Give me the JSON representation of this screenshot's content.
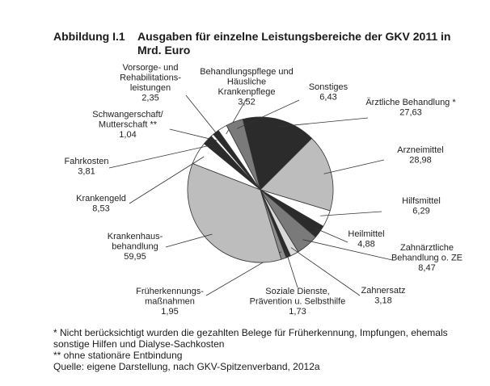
{
  "figure": {
    "label": "Abbildung I.1",
    "title": "Ausgaben für einzelne Leistungsbereiche der GKV 2011 in Mrd. Euro"
  },
  "chart_data": {
    "type": "pie",
    "title": "Ausgaben für einzelne Leistungsbereiche der GKV 2011 in Mrd. Euro",
    "slices": [
      {
        "label": "Ärztliche Behandlung *",
        "value": 27.63,
        "value_label": "27,63",
        "color": "#2b2b2b"
      },
      {
        "label": "Arzneimittel",
        "value": 28.98,
        "value_label": "28,98",
        "color": "#bdbdbd"
      },
      {
        "label": "Hilfsmittel",
        "value": 6.29,
        "value_label": "6,29",
        "color": "#ffffff"
      },
      {
        "label": "Heilmittel",
        "value": 4.88,
        "value_label": "4,88",
        "color": "#2b2b2b"
      },
      {
        "label": "Zahnärztliche Behandlung o. ZE",
        "value": 8.47,
        "value_label": "8,47",
        "color": "#7a7a7a"
      },
      {
        "label": "Zahnersatz",
        "value": 3.18,
        "value_label": "3,18",
        "color": "#d9d9d9"
      },
      {
        "label": "Soziale Dienste, Prävention u. Selbsthilfe",
        "value": 1.73,
        "value_label": "1,73",
        "color": "#2b2b2b"
      },
      {
        "label": "Früherkennungs-maßnahmen",
        "value": 1.95,
        "value_label": "1,95",
        "color": "#8c8c8c"
      },
      {
        "label": "Krankenhaus-behandlung",
        "value": 59.95,
        "value_label": "59,95",
        "color": "#bdbdbd"
      },
      {
        "label": "Krankengeld",
        "value": 8.53,
        "value_label": "8,53",
        "color": "#ffffff"
      },
      {
        "label": "Fahrkosten",
        "value": 3.81,
        "value_label": "3,81",
        "color": "#2b2b2b"
      },
      {
        "label": "Schwangerschaft/ Mutterschaft **",
        "value": 1.04,
        "value_label": "1,04",
        "color": "#ffffff"
      },
      {
        "label": "Vorsorge- und Rehabilitations-leistungen",
        "value": 2.35,
        "value_label": "2,35",
        "color": "#2b2b2b"
      },
      {
        "label": "Behandlungspflege und Häusliche Krankenpflege",
        "value": 3.52,
        "value_label": "3,52",
        "color": "#ffffff"
      },
      {
        "label": "Sonstiges",
        "value": 6.43,
        "value_label": "6,43",
        "color": "#7a7a7a"
      }
    ]
  },
  "notes": {
    "line1": "* Nicht berücksichtigt wurden die gezahlten Belege für Früherkennung, Impfungen, ehemals",
    "line2": "sonstige Hilfen und Dialyse-Sachkosten",
    "line3": "** ohne stationäre Entbindung",
    "line4": "Quelle: eigene Darstellung, nach GKV-Spitzenverband, 2012a"
  }
}
